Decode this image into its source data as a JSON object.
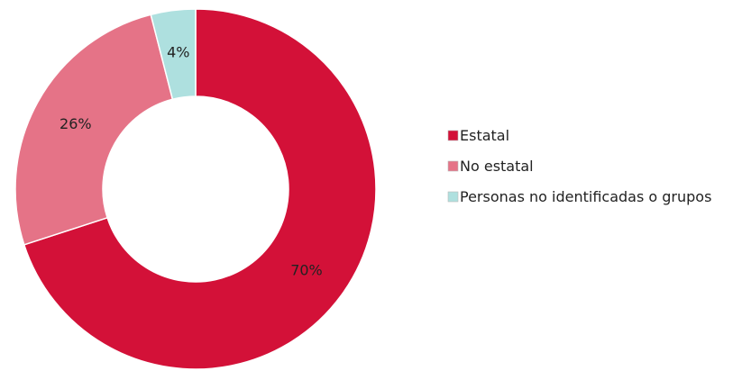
{
  "chart_data": {
    "type": "pie",
    "variant": "donut",
    "legend_position": "right",
    "slices": [
      {
        "label": "Estatal",
        "value": 70,
        "display": "70%",
        "color": "#D31138"
      },
      {
        "label": "No estatal",
        "value": 26,
        "display": "26%",
        "color": "#E57387"
      },
      {
        "label": "Personas no identificadas o grupos",
        "value": 4,
        "display": "4%",
        "color": "#AEE0DF"
      }
    ]
  }
}
